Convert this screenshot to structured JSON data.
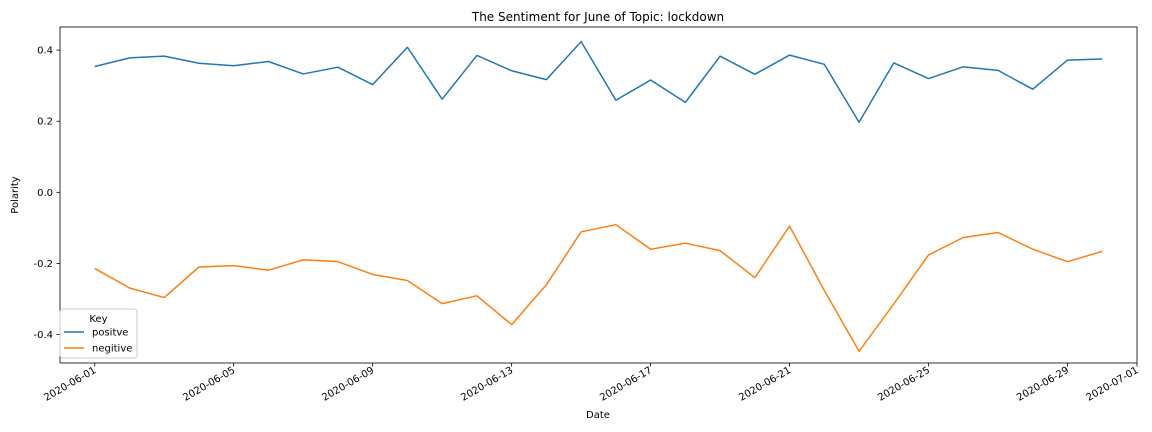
{
  "chart_data": {
    "type": "line",
    "title": "The Sentiment for June of Topic: lockdown",
    "xlabel": "Date",
    "ylabel": "Polarity",
    "x": [
      "2020-06-01",
      "2020-06-02",
      "2020-06-03",
      "2020-06-04",
      "2020-06-05",
      "2020-06-06",
      "2020-06-07",
      "2020-06-08",
      "2020-06-09",
      "2020-06-10",
      "2020-06-11",
      "2020-06-12",
      "2020-06-13",
      "2020-06-14",
      "2020-06-15",
      "2020-06-16",
      "2020-06-17",
      "2020-06-18",
      "2020-06-19",
      "2020-06-20",
      "2020-06-21",
      "2020-06-22",
      "2020-06-23",
      "2020-06-24",
      "2020-06-25",
      "2020-06-26",
      "2020-06-27",
      "2020-06-28",
      "2020-06-29",
      "2020-06-30"
    ],
    "series": [
      {
        "name": "positve",
        "color": "#1f77b4",
        "values": [
          0.354,
          0.378,
          0.383,
          0.363,
          0.356,
          0.368,
          0.333,
          0.352,
          0.303,
          0.408,
          0.262,
          0.385,
          0.342,
          0.317,
          0.424,
          0.259,
          0.316,
          0.253,
          0.383,
          0.332,
          0.386,
          0.36,
          0.197,
          0.364,
          0.32,
          0.353,
          0.343,
          0.29,
          0.372,
          0.375
        ]
      },
      {
        "name": "negitive",
        "color": "#ff7f0e",
        "values": [
          -0.214,
          -0.269,
          -0.296,
          -0.21,
          -0.206,
          -0.219,
          -0.19,
          -0.195,
          -0.231,
          -0.248,
          -0.313,
          -0.291,
          -0.372,
          -0.26,
          -0.111,
          -0.091,
          -0.16,
          -0.143,
          -0.164,
          -0.24,
          -0.095,
          -0.276,
          -0.447,
          -0.314,
          -0.176,
          -0.127,
          -0.113,
          -0.16,
          -0.195,
          -0.166
        ]
      }
    ],
    "x_ticks": [
      "2020-06-01",
      "2020-06-05",
      "2020-06-09",
      "2020-06-13",
      "2020-06-17",
      "2020-06-21",
      "2020-06-25",
      "2020-06-29",
      "2020-07-01"
    ],
    "y_ticks": [
      -0.4,
      -0.2,
      0.0,
      0.2,
      0.4
    ],
    "xlim": [
      "2020-05-31",
      "2020-07-01"
    ],
    "ylim": [
      -0.48,
      0.465
    ],
    "legend_title": "Key",
    "legend_position": "lower-left",
    "grid": false
  }
}
